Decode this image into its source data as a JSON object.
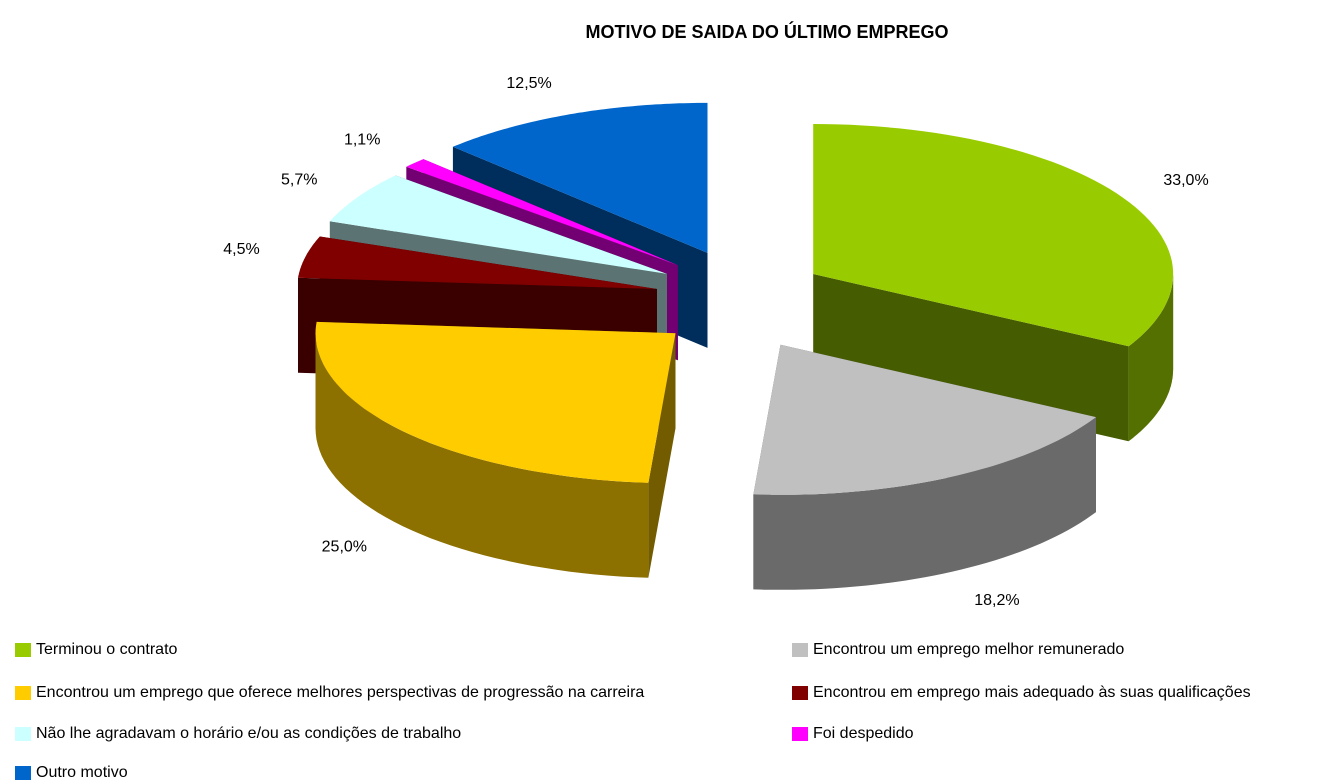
{
  "chart_data": {
    "type": "pie3d",
    "title": "MOTIVO DE SAIDA DO ÚLTIMO EMPREGO",
    "categories": [
      "Terminou o contrato",
      "Encontrou um emprego melhor remunerado",
      "Encontrou um emprego que oferece melhores perspectivas de progressão na carreira",
      "Encontrou em emprego mais adequado às suas qualificações",
      "Não lhe agradavam o horário e/ou as condições de trabalho",
      "Foi despedido",
      "Outro motivo"
    ],
    "values": [
      33.0,
      18.2,
      25.0,
      4.5,
      5.7,
      1.1,
      12.5
    ],
    "value_labels": [
      "33,0%",
      "18,2%",
      "25,0%",
      "4,5%",
      "5,7%",
      "1,1%",
      "12,5%"
    ],
    "colors": [
      "#99cc00",
      "#c0c0c0",
      "#ffcc00",
      "#800000",
      "#ccffff",
      "#ff00ff",
      "#0066cc"
    ]
  }
}
